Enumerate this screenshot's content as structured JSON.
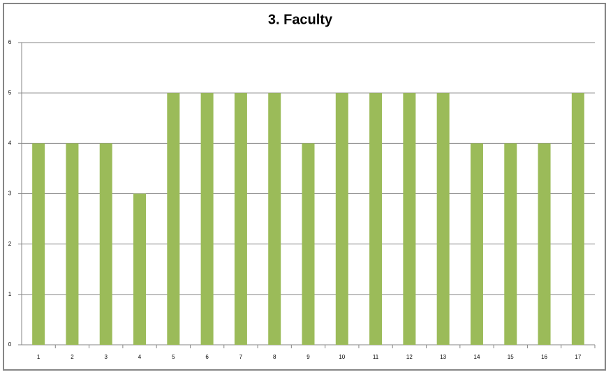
{
  "chart_data": {
    "type": "bar",
    "title": "3. Faculty",
    "categories": [
      "1",
      "2",
      "3",
      "4",
      "5",
      "6",
      "7",
      "8",
      "9",
      "10",
      "11",
      "12",
      "13",
      "14",
      "15",
      "16",
      "17"
    ],
    "values": [
      4,
      4,
      4,
      3,
      5,
      5,
      5,
      5,
      4,
      5,
      5,
      5,
      5,
      4,
      4,
      4,
      5
    ],
    "color": "#9bbb59",
    "ylim": [
      0,
      6
    ],
    "yticks": [
      0,
      1,
      2,
      3,
      4,
      5,
      6
    ],
    "grid": true
  }
}
